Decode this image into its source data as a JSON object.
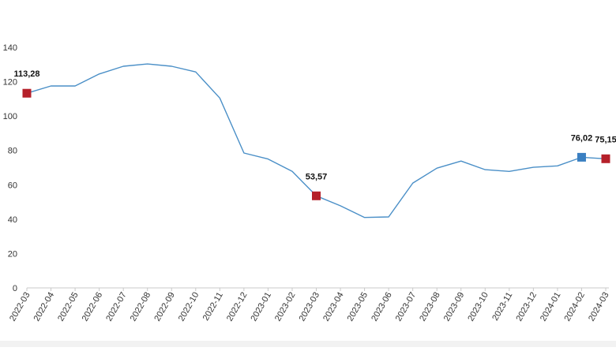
{
  "chart_data": {
    "type": "line",
    "title": "",
    "xlabel": "",
    "ylabel": "",
    "ylim": [
      0,
      140
    ],
    "yticks": [
      0,
      20,
      40,
      60,
      80,
      100,
      120,
      140
    ],
    "grid": false,
    "legend": "none",
    "categories": [
      "2022-03",
      "2022-04",
      "2022-05",
      "2022-06",
      "2022-07",
      "2022-08",
      "2022-09",
      "2022-10",
      "2022-11",
      "2022-12",
      "2023-01",
      "2023-02",
      "2023-03",
      "2023-04",
      "2023-05",
      "2023-06",
      "2023-07",
      "2023-08",
      "2023-09",
      "2023-10",
      "2023-11",
      "2023-12",
      "2024-01",
      "2024-02",
      "2024-03"
    ],
    "series": [
      {
        "values": [
          113.28,
          117.5,
          117.5,
          124.5,
          129.0,
          130.3,
          129.0,
          125.7,
          110.5,
          78.5,
          75.0,
          67.8,
          53.57,
          47.8,
          41.0,
          41.3,
          61.0,
          69.7,
          73.8,
          68.8,
          67.8,
          70.2,
          71.0,
          76.02,
          75.15
        ],
        "color": "#4a8fc7"
      }
    ],
    "highlights": [
      {
        "index": 0,
        "label": "113,28",
        "color": "#b5202a"
      },
      {
        "index": 12,
        "label": "53,57",
        "color": "#b5202a"
      },
      {
        "index": 23,
        "label": "76,02",
        "color": "#3a7fc1"
      },
      {
        "index": 24,
        "label": "75,15",
        "color": "#b5202a"
      }
    ]
  }
}
